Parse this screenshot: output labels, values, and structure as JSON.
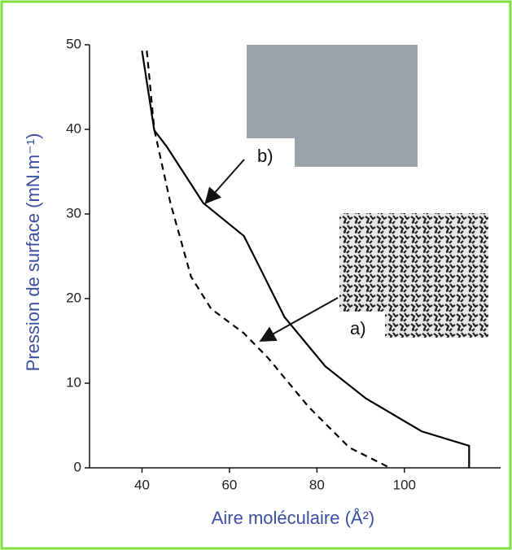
{
  "chart_data": {
    "type": "line",
    "x_label": "Aire moléculaire (Å²)",
    "y_label": "Pression de surface (mN.m⁻¹)",
    "xlim": [
      28,
      122
    ],
    "xticks": [
      40,
      60,
      80,
      100
    ],
    "ylim": [
      0,
      50
    ],
    "yticks": [
      0,
      10,
      20,
      30,
      40,
      50
    ],
    "series": [
      {
        "name": "a)",
        "color": "#000000",
        "dashed": true,
        "x": [
          41.1,
          42.8,
          46.5,
          51.2,
          55.8,
          63.3,
          68.8,
          78.1,
          87.4,
          96.7
        ],
        "values": [
          49.3,
          40,
          31.3,
          22.6,
          18.8,
          15.9,
          13,
          7.2,
          2.4,
          0
        ]
      },
      {
        "name": "b)",
        "color": "#000000",
        "dashed": false,
        "x": [
          40,
          42.8,
          45.6,
          54,
          63.3,
          67,
          72.6,
          81.9,
          91.2,
          104,
          114.8,
          114.8
        ],
        "values": [
          49.3,
          39.9,
          38,
          31.3,
          27.4,
          23.6,
          17.8,
          12,
          8.2,
          4.3,
          2.6,
          0
        ]
      }
    ]
  }
}
